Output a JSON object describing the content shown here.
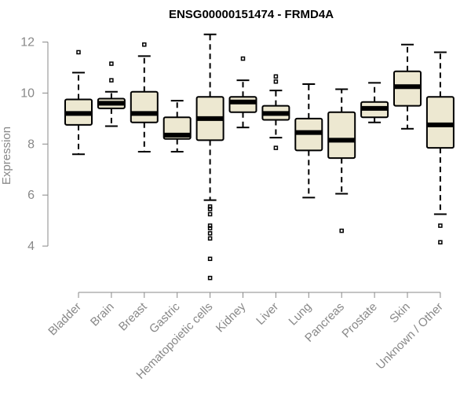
{
  "chart_data": {
    "type": "boxplot",
    "title": "ENSG00000151474 - FRMD4A",
    "xlabel": "",
    "ylabel": "Expression",
    "ylim": [
      2.4,
      12.6
    ],
    "yticks": [
      4,
      6,
      8,
      10,
      12
    ],
    "box_fill": "#ede8d1",
    "categories": [
      "Bladder",
      "Brain",
      "Breast",
      "Gastric",
      "Hematopoietic cells",
      "Kidney",
      "Liver",
      "Lung",
      "Pancreas",
      "Prostate",
      "Skin",
      "Unknown / Other"
    ],
    "boxes": [
      {
        "name": "Bladder",
        "whisker_low": 7.6,
        "q1": 8.75,
        "median": 9.2,
        "q3": 9.75,
        "whisker_high": 10.8,
        "outliers": [
          11.6
        ]
      },
      {
        "name": "Brain",
        "whisker_low": 8.7,
        "q1": 9.4,
        "median": 9.6,
        "q3": 9.78,
        "whisker_high": 10.05,
        "outliers": [
          10.5,
          11.15
        ]
      },
      {
        "name": "Breast",
        "whisker_low": 7.7,
        "q1": 8.85,
        "median": 9.2,
        "q3": 10.05,
        "whisker_high": 11.45,
        "outliers": [
          11.9
        ]
      },
      {
        "name": "Gastric",
        "whisker_low": 7.7,
        "q1": 8.2,
        "median": 8.35,
        "q3": 9.05,
        "whisker_high": 9.7,
        "outliers": []
      },
      {
        "name": "Hematopoietic cells",
        "whisker_low": 5.8,
        "q1": 8.15,
        "median": 9.0,
        "q3": 9.85,
        "whisker_high": 12.3,
        "outliers": [
          5.55,
          5.45,
          5.25,
          4.8,
          4.7,
          4.5,
          4.3,
          3.5,
          2.75
        ]
      },
      {
        "name": "Kidney",
        "whisker_low": 8.65,
        "q1": 9.25,
        "median": 9.65,
        "q3": 9.85,
        "whisker_high": 10.5,
        "outliers": [
          11.35
        ]
      },
      {
        "name": "Liver",
        "whisker_low": 8.25,
        "q1": 8.95,
        "median": 9.2,
        "q3": 9.5,
        "whisker_high": 10.1,
        "outliers": [
          10.65,
          10.45,
          7.85
        ]
      },
      {
        "name": "Lung",
        "whisker_low": 5.9,
        "q1": 7.75,
        "median": 8.45,
        "q3": 9.0,
        "whisker_high": 10.35,
        "outliers": []
      },
      {
        "name": "Pancreas",
        "whisker_low": 6.05,
        "q1": 7.45,
        "median": 8.15,
        "q3": 9.25,
        "whisker_high": 10.15,
        "outliers": [
          4.6
        ]
      },
      {
        "name": "Prostate",
        "whisker_low": 8.85,
        "q1": 9.05,
        "median": 9.4,
        "q3": 9.65,
        "whisker_high": 10.4,
        "outliers": []
      },
      {
        "name": "Skin",
        "whisker_low": 8.6,
        "q1": 9.5,
        "median": 10.25,
        "q3": 10.85,
        "whisker_high": 11.9,
        "outliers": []
      },
      {
        "name": "Unknown / Other",
        "whisker_low": 5.25,
        "q1": 7.85,
        "median": 8.75,
        "q3": 9.85,
        "whisker_high": 11.6,
        "outliers": [
          4.8,
          4.15
        ]
      }
    ]
  }
}
